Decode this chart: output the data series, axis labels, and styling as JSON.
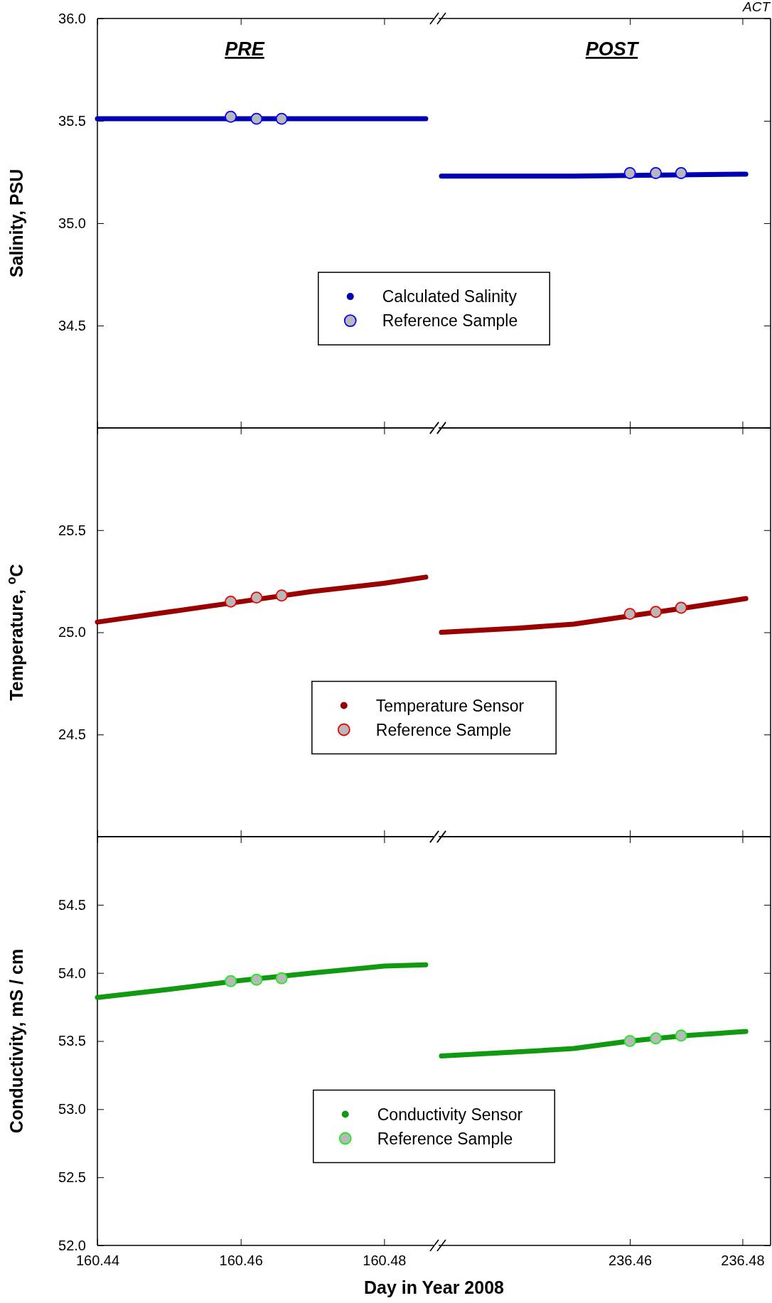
{
  "chart_data": [
    {
      "type": "line",
      "title": "PRE",
      "ylabel": "Salinity, PSU",
      "xlim": [
        160.44,
        160.487
      ],
      "xticks": [
        160.44,
        160.46,
        160.48
      ],
      "ylim": [
        34.0,
        36.0
      ],
      "yticks": [
        {
          "value": 34.0,
          "label": null
        },
        {
          "value": 34.5,
          "label": "34.5"
        },
        {
          "value": 35.0,
          "label": "35.0"
        },
        {
          "value": 35.5,
          "label": "35.5"
        },
        {
          "value": 36.0,
          "label": "36.0"
        }
      ],
      "tick_labels": "y",
      "legend": "bottom",
      "series": [
        {
          "name": "Calculated Salinity",
          "marker": "none",
          "color": "#0000b0",
          "x": [
            160.44,
            160.46,
            160.48,
            160.4858
          ],
          "values": [
            35.51,
            35.51,
            35.51,
            35.51
          ]
        },
        {
          "name": "Reference Sample",
          "type": "scatter",
          "marker": "circle",
          "color": "#b8b8b8",
          "x": [
            160.4586,
            160.4622,
            160.4657
          ],
          "values": [
            35.52,
            35.51,
            35.51
          ]
        }
      ]
    },
    {
      "type": "line",
      "title": "POST",
      "annotations": [
        "ACT"
      ],
      "xlim": [
        236.426,
        236.485
      ],
      "xticks": [
        236.46,
        236.48
      ],
      "ylim": [
        34.0,
        36.0
      ],
      "yticks": [
        {
          "value": 34.0,
          "label": null
        },
        {
          "value": 34.5,
          "label": null
        },
        {
          "value": 35.0,
          "label": null
        },
        {
          "value": 35.5,
          "label": null
        },
        {
          "value": 36.0,
          "label": null
        }
      ],
      "tick_labels": false,
      "series": [
        {
          "marker": "none",
          "color": "#0000b0",
          "x": [
            236.4265,
            236.45,
            236.48,
            236.4806
          ],
          "values": [
            35.23,
            35.23,
            35.24,
            35.24
          ]
        },
        {
          "type": "scatter",
          "marker": "circle",
          "color": "#b8b8b8",
          "x": [
            236.46,
            236.4646,
            236.4691
          ],
          "values": [
            35.245,
            35.245,
            35.245
          ]
        }
      ]
    },
    {
      "type": "line",
      "ylabel": "Temperature, $^{o}$C",
      "xlim": [
        160.44,
        160.487
      ],
      "xticks": [
        160.44,
        160.46,
        160.48
      ],
      "ylim": [
        24.0,
        26.0
      ],
      "yticks": [
        {
          "value": 24.0,
          "label": null
        },
        {
          "value": 24.5,
          "label": "24.5"
        },
        {
          "value": 25.0,
          "label": "25.0"
        },
        {
          "value": 25.5,
          "label": "25.5"
        },
        {
          "value": 26.0,
          "label": null
        }
      ],
      "tick_labels": "y",
      "legend": "bottom",
      "series": [
        {
          "name": "Temperature Sensor",
          "marker": "none",
          "color": "#990000",
          "x": [
            160.44,
            160.45,
            160.46,
            160.47,
            160.48,
            160.4858
          ],
          "values": [
            25.05,
            25.1,
            25.15,
            25.2,
            25.24,
            25.27
          ]
        },
        {
          "name": "Reference Sample",
          "type": "scatter",
          "marker": "circle",
          "color": "#b8b8b8",
          "x": [
            160.4586,
            160.4622,
            160.4657
          ],
          "values": [
            25.15,
            25.17,
            25.18
          ]
        }
      ]
    },
    {
      "type": "line",
      "xlim": [
        236.426,
        236.485
      ],
      "xticks": [
        236.46,
        236.48
      ],
      "ylim": [
        24.0,
        26.0
      ],
      "yticks": [
        {
          "value": 24.0,
          "label": null
        },
        {
          "value": 24.5,
          "label": null
        },
        {
          "value": 25.0,
          "label": null
        },
        {
          "value": 25.5,
          "label": null
        },
        {
          "value": 26.0,
          "label": null
        }
      ],
      "tick_labels": false,
      "series": [
        {
          "marker": "none",
          "color": "#990000",
          "x": [
            236.4265,
            236.44,
            236.45,
            236.46,
            236.47,
            236.4806
          ],
          "values": [
            25.0,
            25.02,
            25.04,
            25.08,
            25.12,
            25.165
          ]
        },
        {
          "type": "scatter",
          "marker": "circle",
          "color": "#b8b8b8",
          "x": [
            236.46,
            236.4646,
            236.4691
          ],
          "values": [
            25.09,
            25.1,
            25.12
          ]
        }
      ]
    },
    {
      "type": "line",
      "ylabel": "Conductivity, mS / cm",
      "xlabel": "Day in Year 2008",
      "xlim": [
        160.44,
        160.487
      ],
      "xticks": [
        160.44,
        160.46,
        160.48
      ],
      "ylim": [
        52.0,
        55.0
      ],
      "yticks": [
        {
          "value": 52.0,
          "label": "52.0"
        },
        {
          "value": 52.5,
          "label": "52.5"
        },
        {
          "value": 53.0,
          "label": "53.0"
        },
        {
          "value": 53.5,
          "label": "53.5"
        },
        {
          "value": 54.0,
          "label": "54.0"
        },
        {
          "value": 54.5,
          "label": "54.5"
        },
        {
          "value": 55.0,
          "label": null
        }
      ],
      "legend": "bottom",
      "series": [
        {
          "name": "Conductivity Sensor",
          "marker": "none",
          "color": "#119911",
          "x": [
            160.44,
            160.45,
            160.46,
            160.47,
            160.48,
            160.4858
          ],
          "values": [
            53.82,
            53.88,
            53.945,
            54.0,
            54.05,
            54.06
          ]
        },
        {
          "name": "Reference Sample",
          "type": "scatter",
          "marker": "circle",
          "color": "#b8b8b8",
          "x": [
            160.4586,
            160.4622,
            160.4657
          ],
          "values": [
            53.94,
            53.95,
            53.96
          ]
        }
      ]
    },
    {
      "type": "line",
      "xlim": [
        236.426,
        236.485
      ],
      "xticks": [
        236.46,
        236.48
      ],
      "ylim": [
        52.0,
        55.0
      ],
      "yticks": [
        {
          "value": 52.0,
          "label": null
        },
        {
          "value": 52.5,
          "label": null
        },
        {
          "value": 53.0,
          "label": null
        },
        {
          "value": 53.5,
          "label": null
        },
        {
          "value": 54.0,
          "label": null
        },
        {
          "value": 54.5,
          "label": null
        },
        {
          "value": 55.0,
          "label": null
        }
      ],
      "tick_labels": "x",
      "series": [
        {
          "marker": "none",
          "color": "#119911",
          "x": [
            236.4265,
            236.44,
            236.45,
            236.46,
            236.47,
            236.4806
          ],
          "values": [
            53.39,
            53.42,
            53.445,
            53.5,
            53.54,
            53.57
          ]
        },
        {
          "type": "scatter",
          "marker": "circle",
          "color": "#b8b8b8",
          "x": [
            236.46,
            236.4646,
            236.4691
          ],
          "values": [
            53.5,
            53.52,
            53.54
          ]
        }
      ]
    }
  ]
}
